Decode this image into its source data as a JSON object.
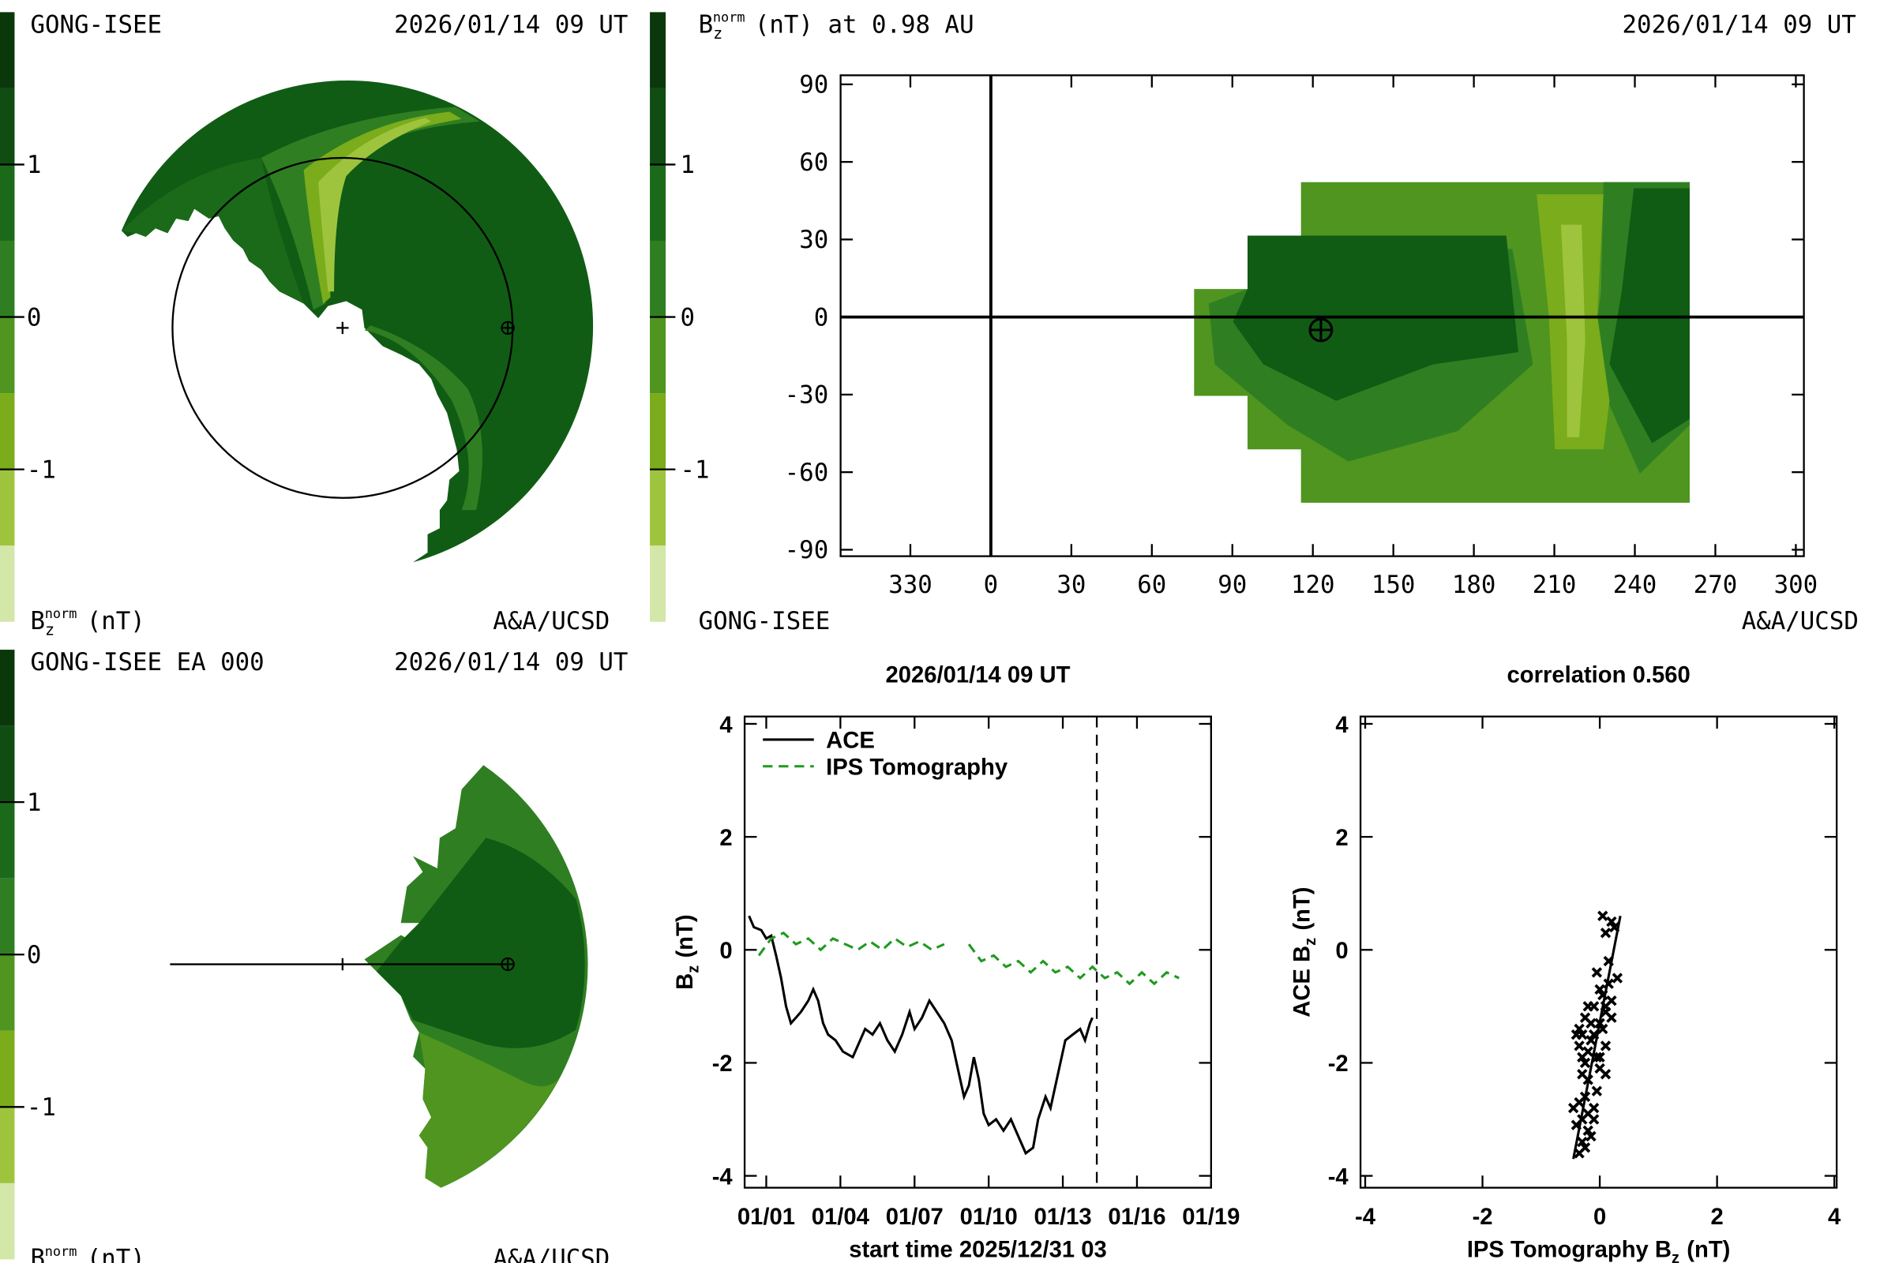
{
  "chart_data": [
    {
      "type": "polar-contour",
      "view": "ecliptic",
      "top_left": "GONG-ISEE",
      "top_right": "2026/01/14 09 UT",
      "bottom_right": "A&A/UCSD",
      "colorbar": {
        "label": {
          "base": "B",
          "sub": "z",
          "sup": "norm",
          "unit": "(nT)"
        },
        "clim": [
          -2,
          2
        ],
        "ticks": [
          -1,
          0,
          1
        ],
        "colors": [
          "#d3e7a9",
          "#9ec43e",
          "#7aac1b",
          "#4f9520",
          "#2f7f22",
          "#1a6a1a",
          "#0f4d12",
          "#0a380b"
        ]
      }
    },
    {
      "type": "polar-contour",
      "view": "meridional",
      "top_left": "GONG-ISEE EA 000",
      "top_right": "2026/01/14 09 UT",
      "bottom_right": "A&A/UCSD",
      "colorbar": {
        "label": {
          "base": "B",
          "sub": "z",
          "sup": "norm",
          "unit": "(nT)"
        },
        "clim": [
          -2,
          2
        ],
        "ticks": [
          -1,
          0,
          1
        ],
        "colors": [
          "#d3e7a9",
          "#9ec43e",
          "#7aac1b",
          "#4f9520",
          "#2f7f22",
          "#1a6a1a",
          "#0f4d12",
          "#0a380b"
        ]
      }
    },
    {
      "type": "map-contour",
      "title": {
        "base": "B",
        "sub": "z",
        "sup": "norm",
        "unit": "(nT) at 0.98 AU"
      },
      "top_right": "2026/01/14 09 UT",
      "bottom_left": "GONG-ISEE",
      "bottom_right": "A&A/UCSD",
      "xlim": [
        -56,
        303
      ],
      "xticks": [
        {
          "value": -30,
          "label": "330"
        },
        0,
        30,
        60,
        90,
        120,
        150,
        180,
        210,
        240,
        270,
        300
      ],
      "ylim": [
        -92.5,
        93.5
      ],
      "yticks": [
        -90,
        -60,
        -30,
        0,
        30,
        60,
        90
      ],
      "earth": {
        "lon": 123,
        "lat": -5
      },
      "colorbar": {
        "clim": [
          -2,
          2
        ],
        "ticks": [
          -1,
          0,
          1
        ],
        "colors": [
          "#d3e7a9",
          "#9ec43e",
          "#7aac1b",
          "#4f9520",
          "#2f7f22",
          "#1a6a1a",
          "#0f4d12",
          "#0a380b"
        ]
      }
    },
    {
      "type": "line",
      "title": "2026/01/14 09 UT",
      "xlabel": "start time 2025/12/31 03",
      "ylabel": {
        "base": "B",
        "sub": "z",
        "unit": "(nT)"
      },
      "xlim": [
        0.125,
        19
      ],
      "xticks": [
        {
          "value": 1,
          "label": "01/01"
        },
        {
          "value": 4,
          "label": "01/04"
        },
        {
          "value": 7,
          "label": "01/07"
        },
        {
          "value": 10,
          "label": "01/10"
        },
        {
          "value": 13,
          "label": "01/13"
        },
        {
          "value": 16,
          "label": "01/16"
        },
        {
          "value": 19,
          "label": "01/19"
        }
      ],
      "ylim": [
        -4.21,
        4.13
      ],
      "yticks": [
        -4,
        -2,
        0,
        2,
        4
      ],
      "now_marker": 14.375,
      "legend": "top-left",
      "series": [
        {
          "name": "ACE",
          "color": "#000000",
          "dashed": false,
          "x": [
            0.3,
            0.5,
            0.8,
            1.0,
            1.2,
            1.4,
            1.6,
            1.8,
            2.0,
            2.2,
            2.4,
            2.7,
            2.9,
            3.1,
            3.3,
            3.5,
            3.8,
            4.1,
            4.5,
            4.8,
            5.0,
            5.3,
            5.6,
            5.9,
            6.2,
            6.5,
            6.8,
            7.0,
            7.3,
            7.6,
            7.9,
            8.2,
            8.5,
            8.8,
            9.0,
            9.2,
            9.4,
            9.6,
            9.8,
            10.0,
            10.3,
            10.6,
            10.9,
            11.2,
            11.5,
            11.8,
            12.0,
            12.3,
            12.5,
            12.8,
            13.1,
            13.4,
            13.7,
            13.9,
            14.1,
            14.2
          ],
          "values": [
            0.6,
            0.4,
            0.35,
            0.2,
            0.25,
            -0.1,
            -0.5,
            -1.0,
            -1.3,
            -1.2,
            -1.1,
            -0.9,
            -0.7,
            -0.9,
            -1.3,
            -1.5,
            -1.6,
            -1.8,
            -1.9,
            -1.6,
            -1.4,
            -1.5,
            -1.3,
            -1.6,
            -1.8,
            -1.5,
            -1.1,
            -1.4,
            -1.2,
            -0.9,
            -1.1,
            -1.3,
            -1.6,
            -2.2,
            -2.6,
            -2.4,
            -1.9,
            -2.3,
            -2.9,
            -3.1,
            -3.0,
            -3.2,
            -3.0,
            -3.3,
            -3.6,
            -3.5,
            -3.0,
            -2.6,
            -2.8,
            -2.2,
            -1.6,
            -1.5,
            -1.4,
            -1.6,
            -1.3,
            -1.2
          ]
        },
        {
          "name": "IPS Tomography",
          "color": "#1f9a1f",
          "dashed": true,
          "x": [
            0.7,
            1.2,
            1.7,
            2.2,
            2.7,
            3.2,
            3.7,
            4.2,
            4.7,
            5.2,
            5.7,
            6.2,
            6.7,
            7.2,
            7.7,
            8.2,
            8.7,
            9.2,
            9.7,
            10.2,
            10.7,
            11.2,
            11.7,
            12.2,
            12.7,
            13.2,
            13.7,
            14.2,
            14.7,
            15.2,
            15.7,
            16.2,
            16.7,
            17.2,
            17.7
          ],
          "values": [
            -0.1,
            0.2,
            0.3,
            0.1,
            0.2,
            0.0,
            0.2,
            0.1,
            0.0,
            0.15,
            0.0,
            0.2,
            0.05,
            0.15,
            0.0,
            0.1,
            null,
            0.1,
            -0.2,
            -0.1,
            -0.3,
            -0.2,
            -0.4,
            -0.2,
            -0.4,
            -0.3,
            -0.5,
            -0.3,
            -0.5,
            -0.4,
            -0.6,
            -0.4,
            -0.6,
            -0.4,
            -0.5
          ]
        }
      ]
    },
    {
      "type": "scatter",
      "title": "correlation 0.560",
      "xlabel": {
        "base": "IPS Tomography B",
        "sub": "z",
        "unit": "(nT)"
      },
      "ylabel": {
        "base": "ACE B",
        "sub": "z",
        "unit": "(nT)"
      },
      "xlim": [
        -4.08,
        4.04
      ],
      "xticks": [
        -4,
        -2,
        0,
        2,
        4
      ],
      "ylim": [
        -4.21,
        4.13
      ],
      "yticks": [
        -4,
        -2,
        0,
        2,
        4
      ],
      "color": "#000000",
      "x": [
        -0.3,
        -0.25,
        -0.2,
        -0.35,
        -0.1,
        0.0,
        0.1,
        0.05,
        -0.15,
        0.2,
        -0.05,
        0.15,
        0.0,
        -0.2,
        0.1,
        -0.3,
        -0.25,
        -0.1,
        0.05,
        0.2,
        -0.4,
        -0.35,
        -0.3,
        -0.2,
        -0.15,
        -0.05,
        0.0,
        0.1,
        -0.25,
        -0.1,
        -0.45,
        -0.4,
        -0.35,
        -0.3,
        -0.25,
        -0.2,
        -0.1,
        -0.3,
        -0.35,
        -0.15,
        0.1,
        0.2,
        0.25,
        0.3,
        0.15,
        0.05,
        -0.05,
        0.0,
        0.1,
        -0.2
      ],
      "values": [
        -1.5,
        -1.2,
        -1.8,
        -1.4,
        -1.0,
        -1.3,
        -1.1,
        -0.8,
        -1.6,
        -0.9,
        -1.9,
        -0.6,
        -2.1,
        -2.3,
        -1.7,
        -1.9,
        -2.0,
        -1.5,
        -1.4,
        -1.2,
        -1.5,
        -2.7,
        -3.0,
        -2.9,
        -3.3,
        -2.5,
        -1.9,
        -2.2,
        -3.5,
        -3.0,
        -2.8,
        -3.1,
        -3.6,
        -3.4,
        -2.6,
        -3.2,
        -2.8,
        -2.2,
        -1.7,
        -1.3,
        0.3,
        0.5,
        0.4,
        -0.5,
        -0.2,
        0.6,
        -0.4,
        -0.7,
        -1.0,
        -1.0
      ],
      "fit": {
        "x": [
          -0.45,
          0.35
        ],
        "values": [
          -3.7,
          0.6
        ]
      }
    }
  ]
}
